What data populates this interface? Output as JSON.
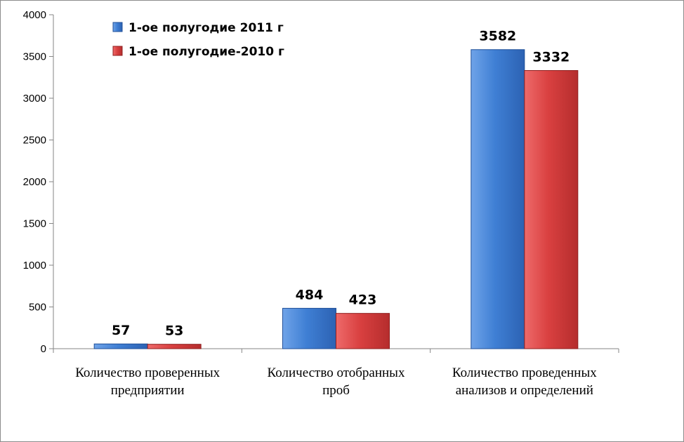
{
  "chart_data": {
    "type": "bar",
    "categories": [
      [
        "Количество проверенных",
        "предприятии"
      ],
      [
        "Количество отобранных",
        "проб"
      ],
      [
        "Количество проведенных",
        "анализов и определений"
      ]
    ],
    "series": [
      {
        "name": "1-ое полугодие 2011 г",
        "values": [
          57,
          484,
          3582
        ],
        "color": "#3f7fd4",
        "color_dark": "#1f4f98"
      },
      {
        "name": "1-ое полугодие-2010 г",
        "values": [
          53,
          423,
          3332
        ],
        "color": "#d94040",
        "color_dark": "#8f1f1f"
      }
    ],
    "ylim": [
      0,
      4000
    ],
    "yticks": [
      0,
      500,
      1000,
      1500,
      2000,
      2500,
      3000,
      3500,
      4000
    ],
    "legend_position": "top-left",
    "grid": false
  }
}
